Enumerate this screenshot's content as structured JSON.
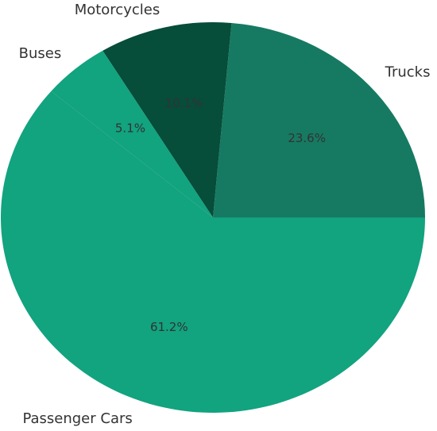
{
  "chart_data": {
    "type": "pie",
    "categories": [
      "Trucks",
      "Motorcycles",
      "Buses",
      "Passenger Cars"
    ],
    "values": [
      23.6,
      10.1,
      5.1,
      61.2
    ],
    "value_labels": [
      "23.6%",
      "10.1%",
      "5.1%",
      "61.2%"
    ],
    "colors": [
      "#167a62",
      "#064d3a",
      "#12a37f",
      "#12a37f"
    ]
  }
}
